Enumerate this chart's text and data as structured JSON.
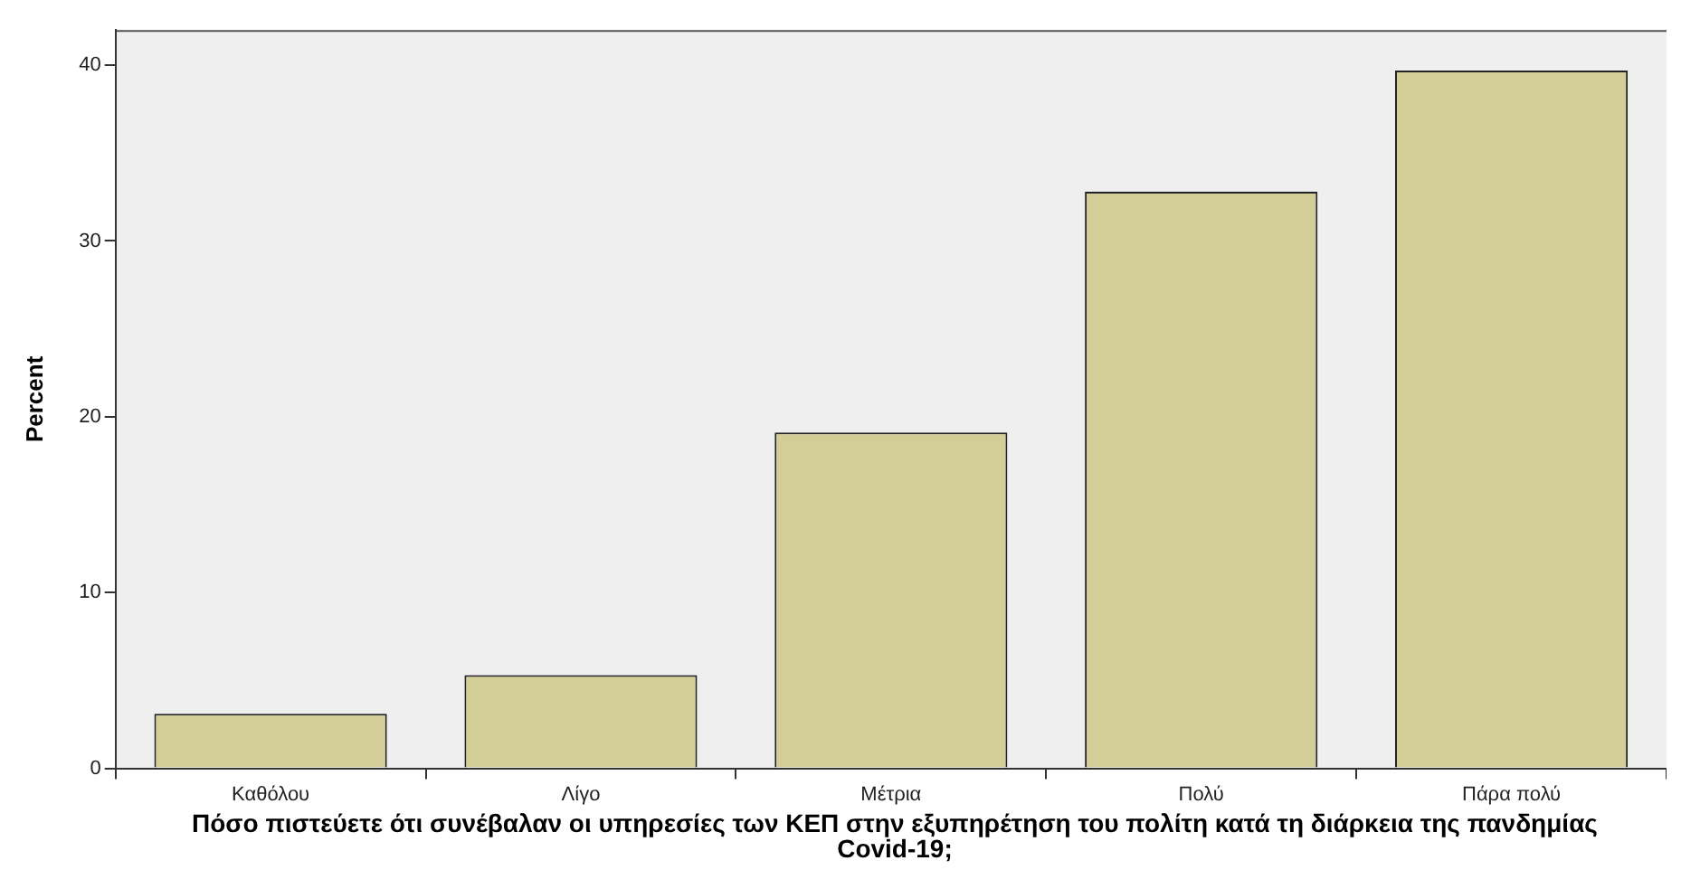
{
  "chart_data": {
    "type": "bar",
    "xlabel": "Πόσο πιστεύετε ότι συνέβαλαν οι υπηρεσίες των ΚΕΠ στην εξυπηρέτηση του πολίτη κατά τη διάρκεια της πανδημίας Covid-19;",
    "ylabel": "Percent",
    "categories": [
      "Καθόλου",
      "Λίγο",
      "Μέτρια",
      "Πολύ",
      "Πάρα πολύ"
    ],
    "values": [
      3.1,
      5.3,
      19.1,
      32.8,
      39.7
    ],
    "color": "#d3ce97",
    "ylim": [
      0,
      42
    ],
    "yticks": [
      0,
      10,
      20,
      30,
      40
    ],
    "grid": false,
    "legend": false
  }
}
